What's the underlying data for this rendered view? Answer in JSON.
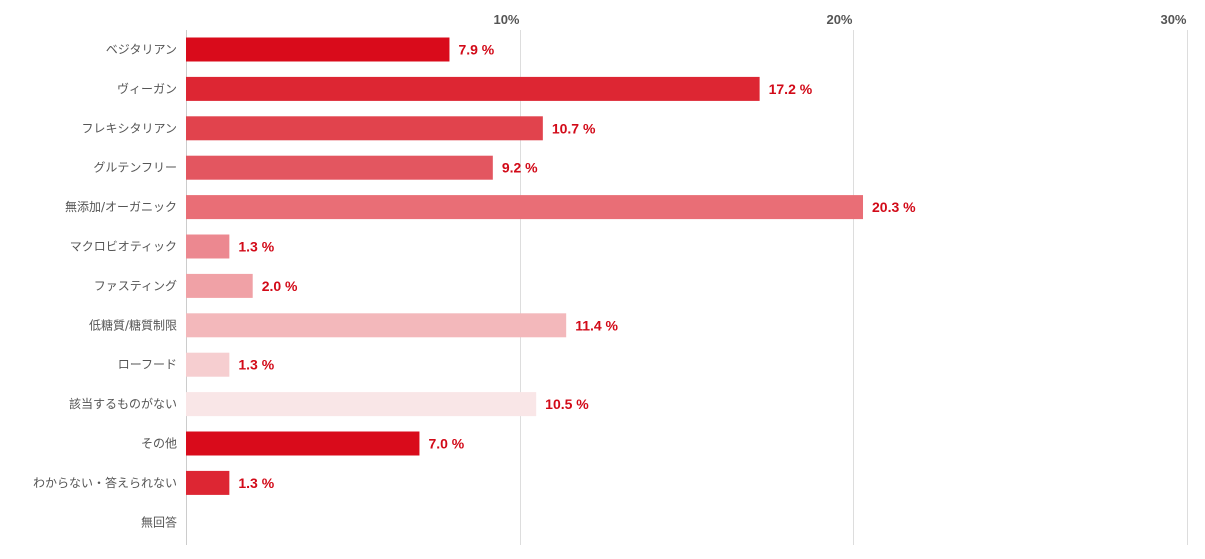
{
  "chart_data": {
    "type": "bar",
    "orientation": "horizontal",
    "title": "",
    "xlabel": "",
    "ylabel": "",
    "xlim": [
      0,
      30
    ],
    "x_ticks": [
      {
        "value": 10,
        "label": "10%"
      },
      {
        "value": 20,
        "label": "20%"
      },
      {
        "value": 30,
        "label": "30%"
      }
    ],
    "x_axis_position": "top",
    "grid": true,
    "categories": [
      "ベジタリアン",
      "ヴィーガン",
      "フレキシタリアン",
      "グルテンフリー",
      "無添加/オーガニック",
      "マクロビオティック",
      "ファスティング",
      "低糖質/糖質制限",
      "ローフード",
      "該当するものがない",
      "その他",
      "わからない・答えられない",
      "無回答"
    ],
    "values": [
      7.9,
      17.2,
      10.7,
      9.2,
      20.3,
      1.3,
      2.0,
      11.4,
      1.3,
      10.5,
      7.0,
      1.3,
      null
    ],
    "value_labels": [
      "7.9 %",
      "17.2 %",
      "10.7 %",
      "9.2 %",
      "20.3 %",
      "1.3 %",
      "2.0 %",
      "11.4 %",
      "1.3 %",
      "10.5 %",
      "7.0 %",
      "1.3 %",
      ""
    ],
    "bar_colors": [
      "#d90b1b",
      "#dd2633",
      "#e1434d",
      "#e35660",
      "#e96e76",
      "#ec8890",
      "#f0a1a6",
      "#f3b8bb",
      "#f6ced0",
      "#f9e6e7",
      "#d90b1b",
      "#dd2633",
      "#ffffff"
    ]
  },
  "colors": {
    "value_label": "#d20a18",
    "axis_text": "#555555",
    "gridline": "#dddddd",
    "axis_line": "#cccccc"
  }
}
